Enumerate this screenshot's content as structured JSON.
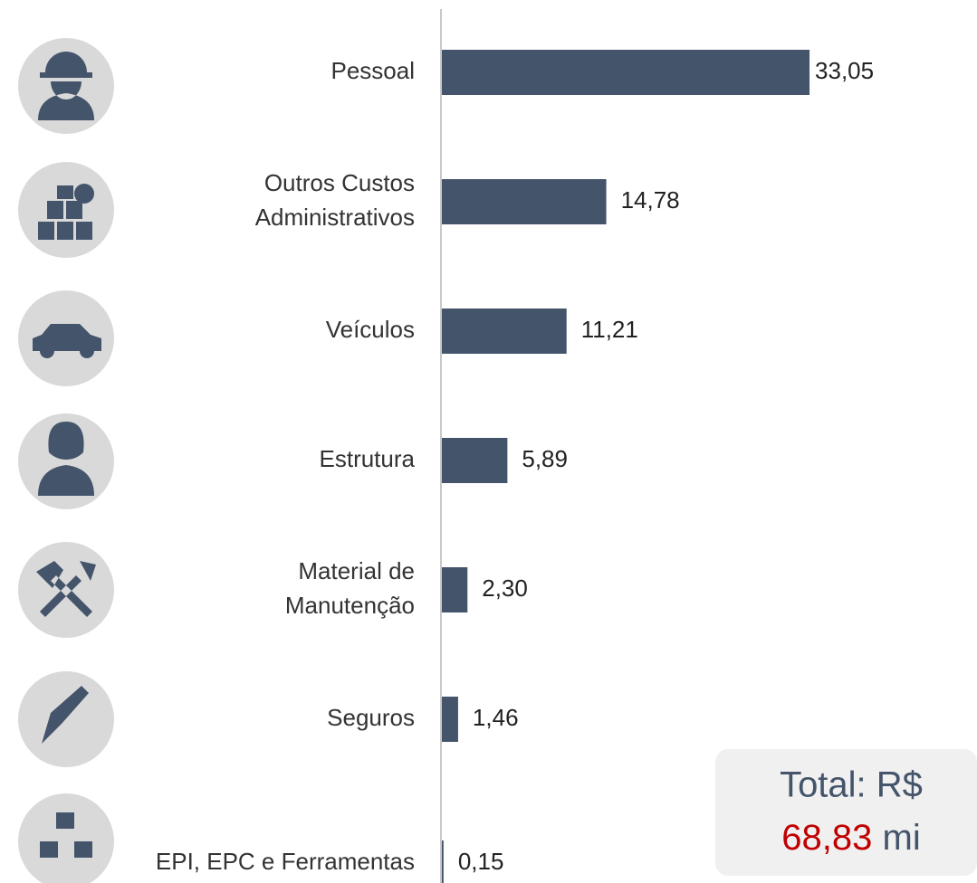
{
  "chart_data": {
    "type": "bar",
    "orientation": "horizontal",
    "categories": [
      "Pessoal",
      "Outros Custos\nAdministrativos",
      "Veículos",
      "Estrutura",
      "Material de\nManutenção",
      "Seguros",
      "EPI, EPC e Ferramentas"
    ],
    "values": [
      33.05,
      14.78,
      11.21,
      5.89,
      2.3,
      1.46,
      0.15
    ],
    "value_labels": [
      "33,05",
      "14,78",
      "11,21",
      "5,89",
      "2,30",
      "1,46",
      "0,15"
    ],
    "color": "#44546a",
    "xlim": [
      0,
      35
    ]
  },
  "total": {
    "prefix": "Total: R$",
    "value": "68,83",
    "unit": "mi"
  }
}
